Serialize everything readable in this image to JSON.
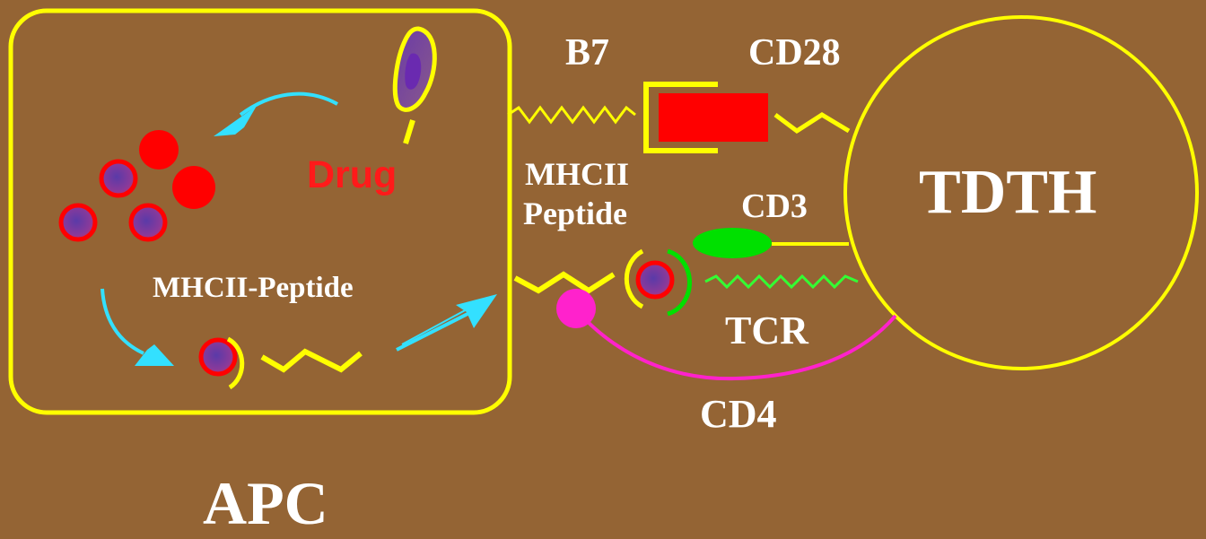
{
  "labels": {
    "drug": "Drug",
    "mhcii_peptide_inner": "MHCII-Peptide",
    "b7": "B7",
    "cd28": "CD28",
    "mhcii": "MHCII",
    "peptide": "Peptide",
    "cd3": "CD3",
    "tcr": "TCR",
    "cd4": "CD4",
    "tdth": "TDTH",
    "apc": "APC"
  },
  "colors": {
    "background": "#946434",
    "membrane": "#ffff00",
    "arrow": "#33e0ff",
    "peptide_fill": "#ff0000",
    "processed_core": "#7a3aa8",
    "cd3": "#00e000",
    "tcr": "#33ff33",
    "cd4": "#ff22cc",
    "text": "#ffffff",
    "drug_text": "#ff1a1a"
  }
}
